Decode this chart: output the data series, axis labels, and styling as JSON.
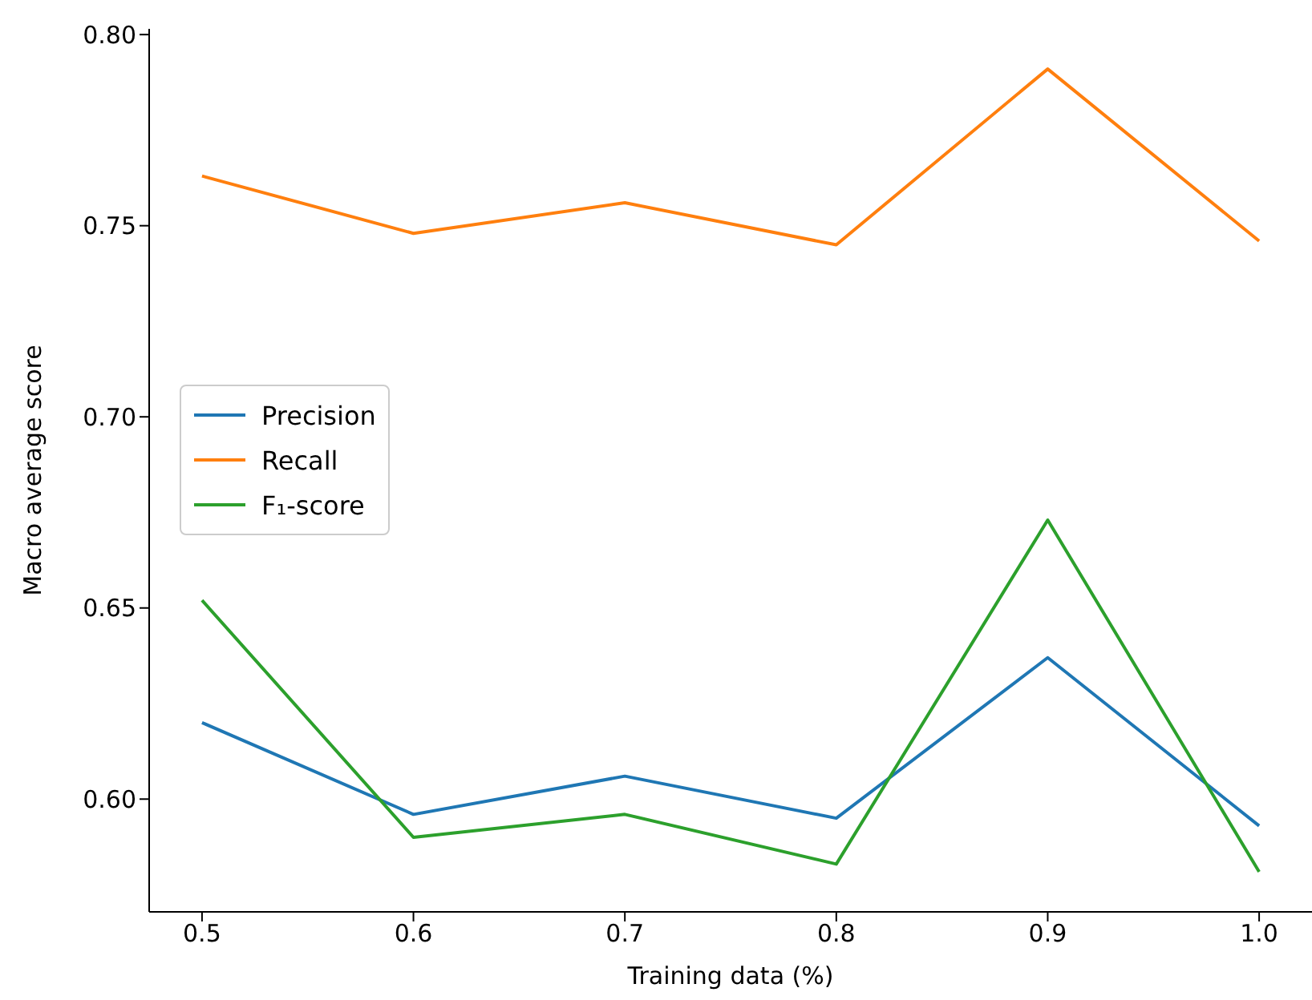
{
  "chart_data": {
    "type": "line",
    "xlabel": "Training data (%)",
    "ylabel": "Macro average score",
    "x": [
      0.5,
      0.6,
      0.7,
      0.8,
      0.9,
      1.0
    ],
    "series": [
      {
        "name": "Precision",
        "color": "#1f77b4",
        "values": [
          0.62,
          0.596,
          0.606,
          0.595,
          0.637,
          0.593
        ]
      },
      {
        "name": "Recall",
        "color": "#ff7f0e",
        "values": [
          0.763,
          0.748,
          0.756,
          0.745,
          0.791,
          0.746
        ]
      },
      {
        "name": "F₁-score",
        "color": "#2ca02c",
        "values": [
          0.652,
          0.59,
          0.596,
          0.583,
          0.673,
          0.581
        ]
      }
    ],
    "xlim": [
      0.475,
      1.025
    ],
    "xticks": [
      0.5,
      0.6,
      0.7,
      0.8,
      0.9,
      {
        "value": 1.0,
        "label": "1.0"
      }
    ],
    "ylim": [
      0.5705,
      0.8015
    ],
    "yticks": [
      {
        "value": 0.6,
        "label": "0.60"
      },
      0.65,
      {
        "value": 0.7,
        "label": "0.70"
      },
      0.75,
      {
        "value": 0.8,
        "label": "0.80"
      }
    ],
    "grid": false,
    "legend": "left",
    "marker": "none",
    "line_style": "solid"
  }
}
